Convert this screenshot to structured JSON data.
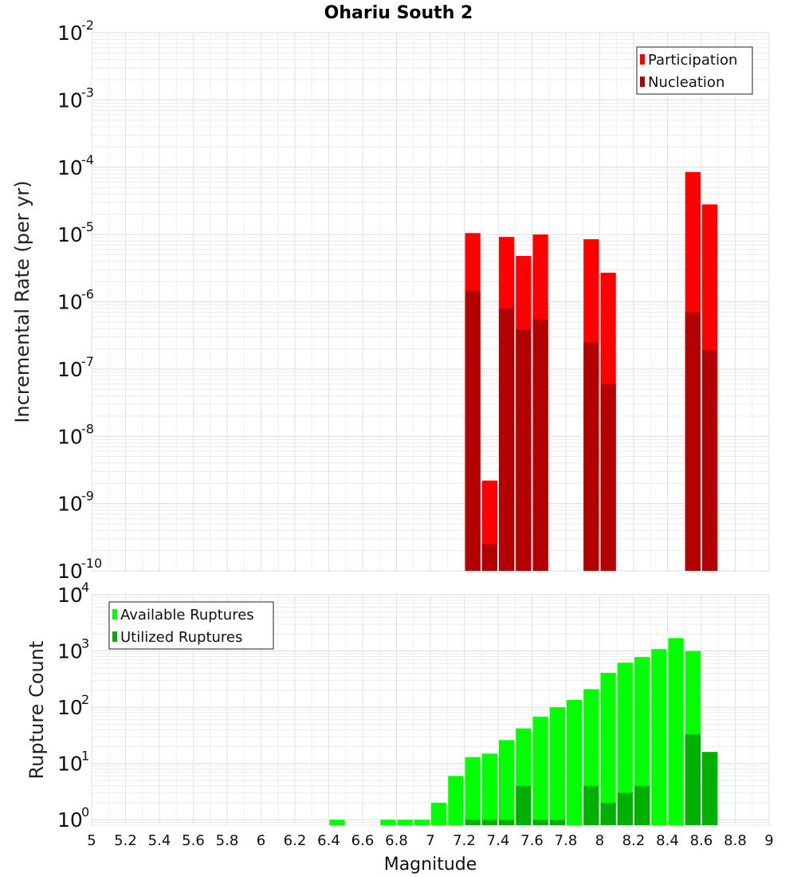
{
  "chart_data": [
    {
      "type": "bar",
      "title": "Ohariu South 2",
      "xlabel": "Magnitude",
      "ylabel": "Incremental Rate (per yr)",
      "yscale": "log",
      "ylim": [
        1e-10,
        0.01
      ],
      "xlim": [
        5,
        9
      ],
      "bin_width": 0.1,
      "grid": true,
      "legend_position": "top-right",
      "x_ticks": [
        "5",
        "5.2",
        "5.4",
        "5.6",
        "5.8",
        "6",
        "6.2",
        "6.4",
        "6.6",
        "6.8",
        "7",
        "7.2",
        "7.4",
        "7.6",
        "7.8",
        "8",
        "8.2",
        "8.4",
        "8.6",
        "8.8",
        "9"
      ],
      "y_ticks": [
        {
          "base": "10",
          "exp": "-10"
        },
        {
          "base": "10",
          "exp": "-9"
        },
        {
          "base": "10",
          "exp": "-8"
        },
        {
          "base": "10",
          "exp": "-7"
        },
        {
          "base": "10",
          "exp": "-6"
        },
        {
          "base": "10",
          "exp": "-5"
        },
        {
          "base": "10",
          "exp": "-4"
        },
        {
          "base": "10",
          "exp": "-3"
        },
        {
          "base": "10",
          "exp": "-2"
        }
      ],
      "series": [
        {
          "name": "Participation",
          "color": "#ff0000",
          "x": [
            7.25,
            7.35,
            7.45,
            7.55,
            7.65,
            7.95,
            8.05,
            8.55,
            8.65
          ],
          "values": [
            1.05e-05,
            2.2e-09,
            9.2e-06,
            4.8e-06,
            1e-05,
            8.5e-06,
            2.7e-06,
            8.5e-05,
            2.8e-05
          ]
        },
        {
          "name": "Nucleation",
          "color": "#b30000",
          "x": [
            7.25,
            7.35,
            7.45,
            7.55,
            7.65,
            7.95,
            8.05,
            8.55,
            8.65
          ],
          "values": [
            1.45e-06,
            2.5e-10,
            8e-07,
            3.9e-07,
            5.5e-07,
            2.5e-07,
            6e-08,
            7e-07,
            1.9e-07
          ]
        }
      ]
    },
    {
      "type": "bar",
      "title": "",
      "xlabel": "Magnitude",
      "ylabel": "Rupture Count",
      "yscale": "log",
      "ylim": [
        0.8,
        10000
      ],
      "xlim": [
        5,
        9
      ],
      "bin_width": 0.1,
      "grid": true,
      "legend_position": "top-left",
      "y_ticks": [
        {
          "base": "10",
          "exp": "0"
        },
        {
          "base": "10",
          "exp": "1"
        },
        {
          "base": "10",
          "exp": "2"
        },
        {
          "base": "10",
          "exp": "3"
        },
        {
          "base": "10",
          "exp": "4"
        }
      ],
      "series": [
        {
          "name": "Available Ruptures",
          "color": "#00ff00",
          "x": [
            6.45,
            6.75,
            6.85,
            6.95,
            7.05,
            7.15,
            7.25,
            7.35,
            7.45,
            7.55,
            7.65,
            7.75,
            7.85,
            7.95,
            8.05,
            8.15,
            8.25,
            8.35,
            8.45,
            8.55,
            8.65
          ],
          "values": [
            1,
            1,
            1,
            1,
            2,
            6,
            13,
            15,
            26,
            42,
            68,
            100,
            135,
            210,
            410,
            620,
            780,
            1080,
            1700,
            1000,
            16
          ]
        },
        {
          "name": "Utilized Ruptures",
          "color": "#00b000",
          "x": [
            7.25,
            7.35,
            7.45,
            7.55,
            7.65,
            7.75,
            7.95,
            8.05,
            8.15,
            8.25,
            8.55,
            8.65
          ],
          "values": [
            1,
            1,
            1,
            4,
            1,
            1,
            4,
            2,
            3,
            4,
            33,
            16
          ]
        }
      ]
    }
  ]
}
